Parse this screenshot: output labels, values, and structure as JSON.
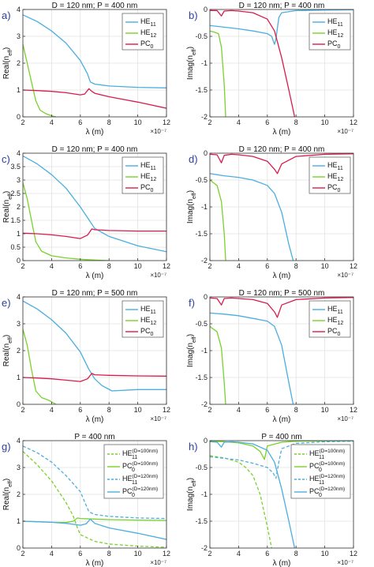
{
  "colors": {
    "blue": "#4aaedf",
    "green": "#7ad12b",
    "red": "#d81b4f",
    "panel_letter": "#2a3f9a"
  },
  "chart_data": [
    {
      "panel": "a)",
      "type": "line",
      "title": "D = 120 nm; P = 400 nm",
      "xlabel": "λ (m)",
      "ylabel": "Real(n_eff)",
      "xlim": [
        2,
        12
      ],
      "ylim": [
        0,
        4
      ],
      "xticks": [
        2,
        4,
        6,
        8,
        10,
        12
      ],
      "yticks": [
        0,
        1,
        2,
        3,
        4
      ],
      "x_exponent": "×10⁻⁷",
      "grid": true,
      "legend_position": "top-right",
      "series": [
        {
          "name": "HE11",
          "color": "blue",
          "dash": false,
          "x": [
            2,
            3,
            4,
            5,
            6,
            6.5,
            6.7,
            7,
            8,
            10,
            12
          ],
          "y": [
            3.8,
            3.55,
            3.2,
            2.75,
            2.1,
            1.6,
            1.3,
            1.22,
            1.15,
            1.1,
            1.08
          ]
        },
        {
          "name": "HE12",
          "color": "green",
          "dash": false,
          "x": [
            2,
            2.3,
            2.6,
            2.9,
            3.2,
            3.6,
            4.0,
            4.3
          ],
          "y": [
            2.7,
            2.0,
            1.3,
            0.6,
            0.25,
            0.12,
            0.04,
            0
          ]
        },
        {
          "name": "PC0",
          "color": "red",
          "dash": false,
          "x": [
            2,
            3,
            4,
            5,
            6,
            6.3,
            6.6,
            6.8,
            7,
            8,
            10,
            12
          ],
          "y": [
            1.0,
            0.98,
            0.95,
            0.9,
            0.82,
            0.85,
            1.05,
            0.95,
            0.88,
            0.75,
            0.55,
            0.32
          ]
        }
      ]
    },
    {
      "panel": "b)",
      "type": "line",
      "title": "D = 120 nm; P = 400 nm",
      "xlabel": "λ (m)",
      "ylabel": "Imag(n_eff)",
      "xlim": [
        2,
        12
      ],
      "ylim": [
        -2,
        0
      ],
      "xticks": [
        2,
        4,
        6,
        8,
        10,
        12
      ],
      "yticks": [
        -2,
        -1.5,
        -1,
        -0.5,
        0
      ],
      "x_exponent": "×10⁻⁷",
      "grid": true,
      "legend_position": "top-right",
      "series": [
        {
          "name": "HE11",
          "color": "blue",
          "dash": false,
          "x": [
            2,
            3,
            4,
            5,
            6,
            6.3,
            6.5,
            6.6,
            6.8,
            7,
            8,
            10,
            12
          ],
          "y": [
            -0.3,
            -0.33,
            -0.36,
            -0.4,
            -0.45,
            -0.5,
            -0.65,
            -0.55,
            -0.15,
            -0.06,
            -0.02,
            -0.01,
            -0.005
          ]
        },
        {
          "name": "HE12",
          "color": "green",
          "dash": false,
          "x": [
            2,
            2.3,
            2.6,
            2.8,
            3.0,
            3.1
          ],
          "y": [
            -0.4,
            -0.42,
            -0.45,
            -0.7,
            -1.4,
            -2.0
          ]
        },
        {
          "name": "PC0",
          "color": "red",
          "dash": false,
          "x": [
            2,
            2.5,
            2.8,
            3.0,
            3.5,
            4,
            5,
            6,
            6.5,
            7,
            7.5,
            7.9
          ],
          "y": [
            -0.02,
            -0.02,
            -0.12,
            -0.03,
            -0.02,
            -0.03,
            -0.06,
            -0.18,
            -0.4,
            -0.9,
            -1.5,
            -2.0
          ]
        }
      ]
    },
    {
      "panel": "c)",
      "type": "line",
      "title": "D = 120 nm; P = 400 nm",
      "xlabel": "λ (m)",
      "ylabel": "Real(n_eff)",
      "xlim": [
        2,
        12
      ],
      "ylim": [
        0,
        4
      ],
      "xticks": [
        2,
        4,
        6,
        8,
        10,
        12
      ],
      "yticks": [
        0,
        0.5,
        1,
        1.5,
        2,
        2.5,
        3,
        3.5,
        4
      ],
      "x_exponent": "×10⁻⁷",
      "grid": true,
      "legend_position": "top-right",
      "series": [
        {
          "name": "HE11",
          "color": "blue",
          "dash": false,
          "x": [
            2,
            3,
            4,
            5,
            6,
            6.5,
            7,
            8,
            10,
            12
          ],
          "y": [
            3.9,
            3.6,
            3.2,
            2.7,
            2.0,
            1.6,
            1.2,
            0.9,
            0.55,
            0.33
          ]
        },
        {
          "name": "HE12",
          "color": "green",
          "dash": false,
          "x": [
            2,
            2.3,
            2.6,
            2.9,
            3.3,
            4,
            5,
            6,
            7,
            8
          ],
          "y": [
            2.9,
            2.3,
            1.5,
            0.7,
            0.35,
            0.18,
            0.1,
            0.05,
            0.02,
            0
          ]
        },
        {
          "name": "PC0",
          "color": "red",
          "dash": false,
          "x": [
            2,
            3,
            4,
            5,
            6,
            6.5,
            6.8,
            7,
            8,
            10,
            12
          ],
          "y": [
            1.02,
            1.0,
            0.96,
            0.9,
            0.82,
            0.95,
            1.18,
            1.15,
            1.12,
            1.1,
            1.1
          ]
        }
      ]
    },
    {
      "panel": "d)",
      "type": "line",
      "title": "D = 120 nm; P = 400 nm",
      "xlabel": "λ (m)",
      "ylabel": "Imag(n_eff)",
      "xlim": [
        2,
        12
      ],
      "ylim": [
        -2,
        0
      ],
      "xticks": [
        2,
        4,
        6,
        8,
        10,
        12
      ],
      "yticks": [
        -2,
        -1.5,
        -1,
        -0.5,
        0
      ],
      "x_exponent": "×10⁻⁷",
      "grid": true,
      "legend_position": "top-right",
      "series": [
        {
          "name": "HE11",
          "color": "blue",
          "dash": false,
          "x": [
            2,
            3,
            4,
            5,
            6,
            6.5,
            7,
            7.5,
            7.8
          ],
          "y": [
            -0.38,
            -0.42,
            -0.45,
            -0.5,
            -0.6,
            -0.75,
            -1.1,
            -1.7,
            -2.0
          ]
        },
        {
          "name": "HE12",
          "color": "green",
          "dash": false,
          "x": [
            2,
            2.5,
            2.8,
            3.0,
            3.1
          ],
          "y": [
            -0.5,
            -0.6,
            -0.9,
            -1.5,
            -2.0
          ]
        },
        {
          "name": "PC0",
          "color": "red",
          "dash": false,
          "x": [
            2,
            2.5,
            2.8,
            3.0,
            3.5,
            4,
            5,
            6,
            6.5,
            6.7,
            7,
            8,
            10,
            12
          ],
          "y": [
            -0.02,
            -0.03,
            -0.18,
            -0.04,
            -0.02,
            -0.03,
            -0.06,
            -0.15,
            -0.3,
            -0.38,
            -0.2,
            -0.06,
            -0.02,
            -0.01
          ]
        }
      ]
    },
    {
      "panel": "e)",
      "type": "line",
      "title": "D = 120 nm; P = 500 nm",
      "xlabel": "λ (m)",
      "ylabel": "Real(n_eff)",
      "xlim": [
        2,
        12
      ],
      "ylim": [
        0,
        4
      ],
      "xticks": [
        2,
        4,
        6,
        8,
        10,
        12
      ],
      "yticks": [
        0,
        1,
        2,
        3,
        4
      ],
      "x_exponent": "×10⁻⁷",
      "grid": true,
      "legend_position": "top-right",
      "series": [
        {
          "name": "HE11",
          "color": "blue",
          "dash": false,
          "x": [
            2,
            3,
            4,
            5,
            6,
            6.6,
            7,
            7.5,
            8.2,
            10,
            12
          ],
          "y": [
            3.85,
            3.55,
            3.15,
            2.65,
            1.95,
            1.3,
            0.95,
            0.7,
            0.5,
            0.55,
            0.55
          ]
        },
        {
          "name": "HE12",
          "color": "green",
          "dash": false,
          "x": [
            2,
            2.3,
            2.6,
            2.9,
            3.3,
            3.8,
            4.3
          ],
          "y": [
            2.8,
            2.2,
            1.3,
            0.5,
            0.25,
            0.15,
            0
          ]
        },
        {
          "name": "PC0",
          "color": "red",
          "dash": false,
          "x": [
            2,
            3,
            4,
            5,
            6,
            6.5,
            6.8,
            7,
            8,
            10,
            12
          ],
          "y": [
            1.0,
            0.98,
            0.95,
            0.9,
            0.85,
            0.95,
            1.15,
            1.1,
            1.08,
            1.06,
            1.05
          ]
        }
      ]
    },
    {
      "panel": "f)",
      "type": "line",
      "title": "D = 120 nm; P = 500 nm",
      "xlabel": "λ (m)",
      "ylabel": "Imag(n_eff)",
      "xlim": [
        2,
        12
      ],
      "ylim": [
        -2,
        0
      ],
      "xticks": [
        2,
        4,
        6,
        8,
        10,
        12
      ],
      "yticks": [
        -2,
        -1.5,
        -1,
        -0.5,
        0
      ],
      "x_exponent": "×10⁻⁷",
      "grid": true,
      "legend_position": "top-right",
      "series": [
        {
          "name": "HE11",
          "color": "blue",
          "dash": false,
          "x": [
            2,
            3,
            4,
            5,
            6,
            6.5,
            7,
            7.5,
            7.8
          ],
          "y": [
            -0.3,
            -0.32,
            -0.35,
            -0.4,
            -0.45,
            -0.55,
            -0.9,
            -1.6,
            -2.0
          ]
        },
        {
          "name": "HE12",
          "color": "green",
          "dash": false,
          "x": [
            2,
            2.5,
            2.8,
            3.0,
            3.1
          ],
          "y": [
            -0.55,
            -0.65,
            -0.95,
            -1.6,
            -2.0
          ]
        },
        {
          "name": "PC0",
          "color": "red",
          "dash": false,
          "x": [
            2,
            2.5,
            2.8,
            3.0,
            3.5,
            4,
            5,
            6,
            6.5,
            6.7,
            7,
            8,
            10,
            12
          ],
          "y": [
            -0.02,
            -0.03,
            -0.15,
            -0.03,
            -0.02,
            -0.03,
            -0.05,
            -0.12,
            -0.28,
            -0.38,
            -0.15,
            -0.05,
            -0.02,
            -0.01
          ]
        }
      ]
    },
    {
      "panel": "g)",
      "type": "line",
      "title": "P = 400 nm",
      "xlabel": "λ (m)",
      "ylabel": "Real(n_eff)",
      "xlim": [
        2,
        12
      ],
      "ylim": [
        0,
        4
      ],
      "xticks": [
        2,
        4,
        6,
        8,
        10,
        12
      ],
      "yticks": [
        0,
        1,
        2,
        3,
        4
      ],
      "x_exponent": "×10⁻⁷",
      "grid": true,
      "legend_position": "top-right",
      "series": [
        {
          "name": "HE11 (D=100nm)",
          "color": "green",
          "dash": true,
          "x": [
            2,
            3,
            4,
            5,
            5.5,
            5.8,
            6,
            7,
            8,
            10,
            12
          ],
          "y": [
            3.6,
            3.1,
            2.5,
            1.7,
            1.2,
            0.75,
            0.5,
            0.25,
            0.15,
            0.07,
            0.03
          ]
        },
        {
          "name": "PC0 (D=100nm)",
          "color": "green",
          "dash": false,
          "x": [
            2,
            3,
            4,
            5,
            5.5,
            5.8,
            6,
            7,
            8,
            10,
            12
          ],
          "y": [
            1.0,
            0.98,
            0.96,
            0.95,
            1.0,
            1.12,
            1.1,
            1.08,
            1.06,
            1.04,
            1.03
          ]
        },
        {
          "name": "HE11 (D=120nm)",
          "color": "blue",
          "dash": true,
          "x": [
            2,
            3,
            4,
            5,
            6,
            6.6,
            7,
            8,
            10,
            12
          ],
          "y": [
            3.8,
            3.55,
            3.2,
            2.7,
            2.1,
            1.35,
            1.25,
            1.18,
            1.12,
            1.1
          ]
        },
        {
          "name": "PC0 (D=120nm)",
          "color": "blue",
          "dash": false,
          "x": [
            2,
            3,
            4,
            5,
            6,
            6.4,
            6.7,
            7,
            8,
            10,
            12
          ],
          "y": [
            1.0,
            0.98,
            0.96,
            0.92,
            0.85,
            0.9,
            1.08,
            0.92,
            0.75,
            0.55,
            0.32
          ]
        }
      ]
    },
    {
      "panel": "h)",
      "type": "line",
      "title": "P = 400 nm",
      "xlabel": "λ (m)",
      "ylabel": "Imag(n_eff)",
      "xlim": [
        2,
        12
      ],
      "ylim": [
        -2,
        0
      ],
      "xticks": [
        2,
        4,
        6,
        8,
        10,
        12
      ],
      "yticks": [
        -2,
        -1.5,
        -1,
        -0.5,
        0
      ],
      "x_exponent": "×10⁻⁷",
      "grid": true,
      "legend_position": "top-right",
      "series": [
        {
          "name": "HE11 (D=100nm)",
          "color": "green",
          "dash": true,
          "x": [
            2,
            3,
            4,
            4.5,
            5,
            5.5,
            6,
            6.3
          ],
          "y": [
            -0.28,
            -0.32,
            -0.4,
            -0.5,
            -0.65,
            -1.0,
            -1.6,
            -2.0
          ]
        },
        {
          "name": "PC0 (D=100nm)",
          "color": "green",
          "dash": false,
          "x": [
            2,
            3,
            4,
            5,
            5.5,
            5.8,
            6,
            7,
            8,
            10,
            12
          ],
          "y": [
            -0.01,
            -0.02,
            -0.04,
            -0.1,
            -0.2,
            -0.35,
            -0.1,
            -0.03,
            -0.01,
            -0.005,
            -0.003
          ]
        },
        {
          "name": "HE11 (D=120nm)",
          "color": "blue",
          "dash": true,
          "x": [
            2,
            3,
            4,
            5,
            6,
            6.4,
            6.6,
            6.8,
            7,
            8,
            10,
            12
          ],
          "y": [
            -0.3,
            -0.33,
            -0.36,
            -0.42,
            -0.5,
            -0.6,
            -0.7,
            -0.4,
            -0.15,
            -0.05,
            -0.02,
            -0.01
          ]
        },
        {
          "name": "PC0 (D=120nm)",
          "color": "blue",
          "dash": false,
          "x": [
            2,
            2.5,
            2.8,
            3.0,
            3.5,
            4,
            5,
            6,
            6.5,
            7,
            7.5,
            7.9
          ],
          "y": [
            -0.02,
            -0.03,
            -0.12,
            -0.03,
            -0.02,
            -0.03,
            -0.06,
            -0.18,
            -0.4,
            -0.9,
            -1.5,
            -2.0
          ]
        }
      ]
    }
  ]
}
